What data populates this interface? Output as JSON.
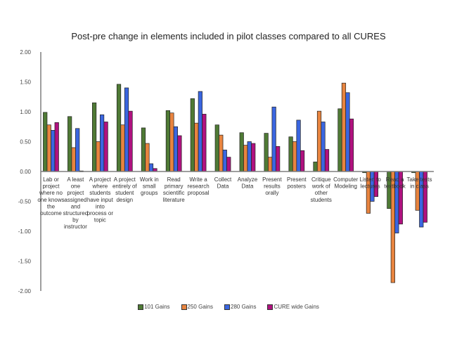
{
  "chart_data": {
    "type": "bar",
    "title": "Post-pre change in elements included in pilot classes compared to all CURES",
    "xlabel": "",
    "ylabel": "",
    "ylim": [
      -2.0,
      2.0
    ],
    "yticks": [
      "2.00",
      "1.50",
      "1.00",
      "0.50",
      "0.00",
      "-0.50",
      "-1.00",
      "-1.50",
      "-2.00"
    ],
    "ytick_values": [
      2.0,
      1.5,
      1.0,
      0.5,
      0.0,
      -0.5,
      -1.0,
      -1.5,
      -2.0
    ],
    "grid": false,
    "legend_position": "bottom",
    "categories": [
      [
        "Lab or",
        "project",
        "where no",
        "one knows",
        "the",
        "outcome"
      ],
      [
        "A least",
        "one",
        "project",
        "assigned",
        "and",
        "structured",
        "by",
        "instructor"
      ],
      [
        "A project",
        "where",
        "students",
        "have input",
        "into",
        "process or",
        "topic"
      ],
      [
        "A project",
        "entirely of",
        "student",
        "design"
      ],
      [
        "Work in",
        "small",
        "groups"
      ],
      [
        "Read",
        "primary",
        "scientific",
        "literature"
      ],
      [
        "Write a",
        "research",
        "proposal"
      ],
      [
        "Collect",
        "Data"
      ],
      [
        "Analyze",
        "Data"
      ],
      [
        "Present",
        "results",
        "orally"
      ],
      [
        "Present",
        "posters"
      ],
      [
        "Critique",
        "work of",
        "other",
        "students"
      ],
      [
        "Computer",
        "Modeling"
      ],
      [
        "Listen to",
        "lectures"
      ],
      [
        "Read a",
        "textbook"
      ],
      [
        "Take tests",
        "in class"
      ]
    ],
    "series": [
      {
        "name": "101 Gains",
        "color": "#4f7a35",
        "values": [
          0.99,
          0.92,
          1.15,
          1.46,
          0.73,
          1.02,
          1.22,
          0.78,
          0.65,
          0.64,
          0.58,
          0.16,
          1.05,
          -0.02,
          -0.62,
          -0.02
        ]
      },
      {
        "name": "250 Gains",
        "color": "#e8843f",
        "values": [
          0.78,
          0.4,
          0.5,
          0.78,
          0.47,
          0.98,
          0.81,
          0.61,
          0.44,
          0.24,
          0.5,
          1.01,
          1.48,
          -0.7,
          -1.86,
          -0.65
        ]
      },
      {
        "name": "280 Gains",
        "color": "#3a66e0",
        "values": [
          0.69,
          0.72,
          0.95,
          1.4,
          0.13,
          0.75,
          1.34,
          0.36,
          0.5,
          1.08,
          0.86,
          0.83,
          1.32,
          -0.5,
          -1.03,
          -0.93
        ]
      },
      {
        "name": "CURE wide Gains",
        "color": "#b0117f",
        "values": [
          0.82,
          0.01,
          0.83,
          1.01,
          0.05,
          0.6,
          0.96,
          0.24,
          0.47,
          0.42,
          0.35,
          0.37,
          0.88,
          -0.42,
          -0.88,
          -0.85
        ]
      }
    ]
  }
}
